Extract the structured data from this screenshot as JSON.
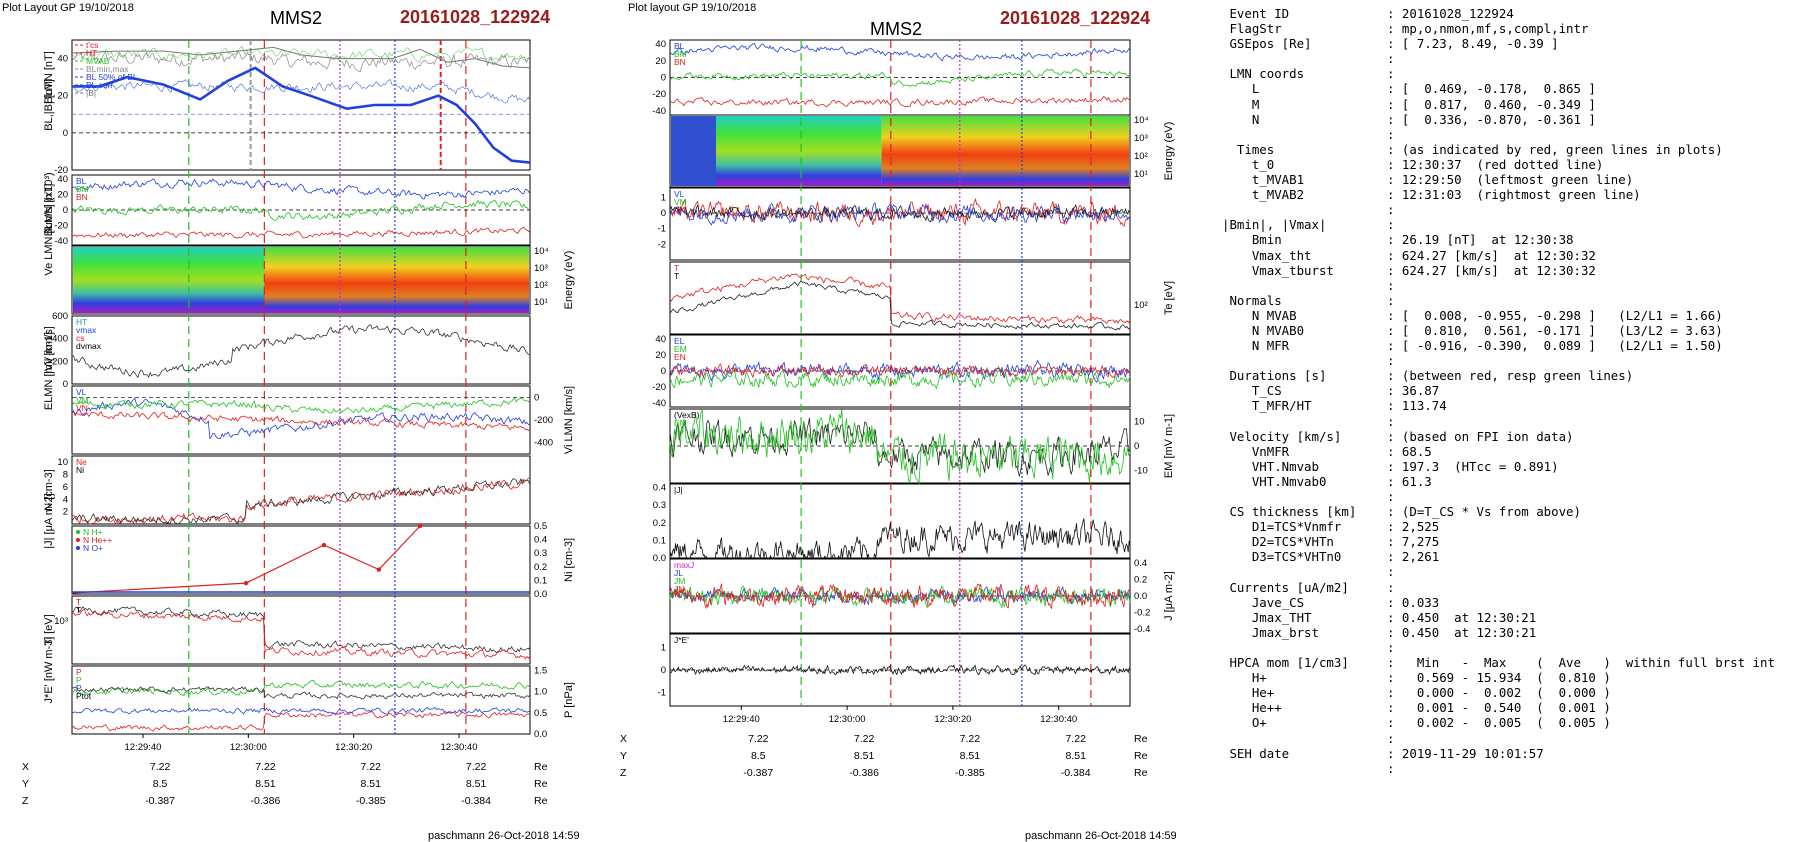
{
  "left": {
    "layout_label": "Plot Layout GP 19/10/2018",
    "spacecraft": "MMS2",
    "event_code": "20161028_122924",
    "footer": "paschmann 26-Oct-2018 14:59",
    "time_ticks": [
      "12:29:40",
      "12:30:00",
      "12:30:20",
      "12:30:40"
    ],
    "pos_rows": [
      {
        "label": "X",
        "values": [
          "7.22",
          "7.22",
          "7.22",
          "7.22"
        ],
        "unit": "Re"
      },
      {
        "label": "Y",
        "values": [
          "8.5",
          "8.51",
          "8.51",
          "8.51"
        ],
        "unit": "Re"
      },
      {
        "label": "Z",
        "values": [
          "-0.387",
          "-0.386",
          "-0.385",
          "-0.384"
        ],
        "unit": "Re"
      }
    ]
  },
  "right": {
    "layout_label": "Plot layout GP 19/10/2018",
    "spacecraft": "MMS2",
    "event_code": "20161028_122924",
    "footer": "paschmann 26-Oct-2018 14:59",
    "time_ticks": [
      "12:29:40",
      "12:30:00",
      "12:30:20",
      "12:30:40"
    ],
    "pos_rows": [
      {
        "label": "X",
        "values": [
          "7.22",
          "7.22",
          "7.22",
          "7.22"
        ],
        "unit": "Re"
      },
      {
        "label": "Y",
        "values": [
          "8.5",
          "8.51",
          "8.51",
          "8.51"
        ],
        "unit": "Re"
      },
      {
        "label": "Z",
        "values": [
          "-0.387",
          "-0.386",
          "-0.385",
          "-0.384"
        ],
        "unit": "Re"
      }
    ]
  },
  "chart_data": [
    {
      "type": "line",
      "panel": "left-1",
      "ylabel": "BL,|B| [nT]",
      "ylim": [
        -20,
        50
      ],
      "yticks": [
        "40",
        "20",
        "0",
        "-20"
      ],
      "legend": [
        "t'cs",
        "HT",
        "MVAB",
        "BLmin,max",
        "BL 50% of BL",
        "BL corr",
        "|B|"
      ],
      "series": [
        {
          "name": "BL",
          "x": [
            0,
            0.06,
            0.12,
            0.2,
            0.28,
            0.34,
            0.4,
            0.46,
            0.52,
            0.6,
            0.66,
            0.74,
            0.8,
            0.84,
            0.88,
            0.92,
            0.96,
            1.0
          ],
          "values": [
            25,
            25,
            30,
            26,
            18,
            28,
            35,
            25,
            20,
            13,
            15,
            15,
            20,
            15,
            5,
            -8,
            -15,
            -16
          ]
        },
        {
          "name": "|B|",
          "x": [
            0,
            0.1,
            0.2,
            0.28,
            0.36,
            0.44,
            0.5,
            0.58,
            0.64,
            0.7,
            0.76,
            0.82,
            0.88,
            0.94,
            1.0
          ],
          "values": [
            43,
            44,
            44,
            42,
            44,
            46,
            42,
            40,
            40,
            40,
            45,
            38,
            40,
            36,
            35
          ]
        }
      ]
    },
    {
      "type": "line",
      "panel": "left-2",
      "ylabel": "BLMN [nT]",
      "ylim": [
        -45,
        45
      ],
      "yticks": [
        "40",
        "20",
        "0",
        "-20",
        "-40"
      ],
      "legend": [
        "BL",
        "BM",
        "BN"
      ]
    },
    {
      "type": "heatmap",
      "panel": "left-3",
      "ylabel": "Energy (eV)",
      "yticks": [
        "10⁴",
        "10³",
        "10²",
        "10¹"
      ]
    },
    {
      "type": "line",
      "panel": "left-4",
      "ylabel": "|Vi| [km/s]",
      "ylim": [
        0,
        600
      ],
      "yticks": [
        "600",
        "400",
        "200",
        "0"
      ],
      "legend": [
        "HT",
        "vmax",
        "cs",
        "dvmax"
      ]
    },
    {
      "type": "line",
      "panel": "left-5",
      "ylabel": "Vi LMN [km/s]",
      "ylim": [
        -500,
        100
      ],
      "yticks": [
        "0",
        "-200",
        "-400"
      ],
      "legend": [
        "VL",
        "VM",
        "VN"
      ]
    },
    {
      "type": "line",
      "panel": "left-6",
      "ylabel": "N [cm-3]",
      "ylim": [
        0,
        11
      ],
      "yticks": [
        "10",
        "8",
        "6",
        "4",
        "2"
      ],
      "legend": [
        "Ne",
        "Ni"
      ]
    },
    {
      "type": "line",
      "panel": "left-7",
      "ylabel": "Ni [cm-3]",
      "ylim": [
        0,
        0.5
      ],
      "yticks": [
        "0.5",
        "0.4",
        "0.3",
        "0.2",
        "0.1",
        "0.0"
      ],
      "legend": [
        "N H+",
        "N He++",
        "N O+"
      ],
      "series": [
        {
          "name": "N He++",
          "x": [
            0.38,
            0.55,
            0.67,
            0.76
          ],
          "values": [
            0.08,
            0.36,
            0.18,
            0.5
          ]
        }
      ]
    },
    {
      "type": "line",
      "panel": "left-8",
      "ylabel": "Ti [eV]",
      "yticks": [
        "10³"
      ],
      "legend": [
        "T",
        "T"
      ]
    },
    {
      "type": "line",
      "panel": "left-9",
      "ylabel": "P [nPa]",
      "ylim": [
        0,
        1.6
      ],
      "yticks": [
        "1.5",
        "1.0",
        "0.5",
        "0.0"
      ],
      "legend": [
        "P",
        "P",
        "P",
        "Ptot"
      ]
    },
    {
      "type": "line",
      "panel": "right-1",
      "ylabel": "BLMN [nT]",
      "ylim": [
        -45,
        45
      ],
      "yticks": [
        "40",
        "20",
        "0",
        "-20",
        "-40"
      ],
      "legend": [
        "BL",
        "BM",
        "BN"
      ]
    },
    {
      "type": "heatmap",
      "panel": "right-2",
      "ylabel": "Energy (eV)",
      "yticks": [
        "10⁴",
        "10³",
        "10²",
        "10¹"
      ]
    },
    {
      "type": "line",
      "panel": "right-3",
      "ylabel": "Ve LMN [km/s] (x10³)",
      "ylim": [
        -3,
        1.6
      ],
      "yticks": [
        "1",
        "0",
        "-1",
        "-2"
      ],
      "legend": [
        "VL",
        "VM",
        "VN"
      ]
    },
    {
      "type": "line",
      "panel": "right-4",
      "ylabel": "Te [eV]",
      "yticks": [
        "10²"
      ],
      "legend": [
        "T",
        "T"
      ]
    },
    {
      "type": "line",
      "panel": "right-5",
      "ylabel": "ELMN [mV m-1]",
      "ylim": [
        -45,
        45
      ],
      "yticks": [
        "40",
        "20",
        "0",
        "-20",
        "-40"
      ],
      "legend": [
        "EL",
        "EM",
        "EN"
      ]
    },
    {
      "type": "line",
      "panel": "right-6",
      "ylabel": "EM [mV m-1]",
      "ylim": [
        -15,
        15
      ],
      "yticks": [
        "10",
        "0",
        "-10"
      ],
      "legend": [
        "(VexB)",
        "EM"
      ]
    },
    {
      "type": "line",
      "panel": "right-7",
      "ylabel": "|J| [μA m-2]",
      "ylim": [
        0,
        0.42
      ],
      "yticks": [
        "0.4",
        "0.3",
        "0.2",
        "0.1",
        "0.0"
      ],
      "legend": [
        "|J|"
      ]
    },
    {
      "type": "line",
      "panel": "right-8",
      "ylabel": "J [μA m-2]",
      "ylim": [
        -0.45,
        0.45
      ],
      "yticks": [
        "0.4",
        "0.2",
        "0.0",
        "-0.2",
        "-0.4"
      ],
      "legend": [
        "maxJ",
        "JL",
        "JM",
        "JN"
      ]
    },
    {
      "type": "line",
      "panel": "right-9",
      "ylabel": "J*E' [nW m-3]",
      "ylim": [
        -1.6,
        1.6
      ],
      "yticks": [
        "1",
        "0",
        "-1"
      ],
      "legend": [
        "J*E'"
      ]
    }
  ],
  "summary": [
    {
      "k": " Event ID",
      "v": ": 20161028_122924"
    },
    {
      "k": " FlagStr",
      "v": ": mp,o,nmon,mf,s,compl,intr"
    },
    {
      "k": " GSEpos [Re]",
      "v": ": [ 7.23, 8.49, -0.39 ]"
    },
    {
      "k": "",
      "v": ":"
    },
    {
      "k": " LMN coords",
      "v": ":"
    },
    {
      "k": "    L",
      "v": ": [  0.469, -0.178,  0.865 ]"
    },
    {
      "k": "    M",
      "v": ": [  0.817,  0.460, -0.349 ]"
    },
    {
      "k": "    N",
      "v": ": [  0.336, -0.870, -0.361 ]"
    },
    {
      "k": "",
      "v": ":"
    },
    {
      "k": "  Times",
      "v": ": (as indicated by red, green lines in plots)"
    },
    {
      "k": "    t_0",
      "v": ": 12:30:37  (red dotted line)"
    },
    {
      "k": "    t_MVAB1",
      "v": ": 12:29:50  (leftmost green line)"
    },
    {
      "k": "    t_MVAB2",
      "v": ": 12:31:03  (rightmost green line)"
    },
    {
      "k": "",
      "v": ":"
    },
    {
      "k": "|Bmin|, |Vmax|",
      "v": ":"
    },
    {
      "k": "    Bmin",
      "v": ": 26.19 [nT]  at 12:30:38"
    },
    {
      "k": "    Vmax_tht",
      "v": ": 624.27 [km/s]  at 12:30:32"
    },
    {
      "k": "    Vmax_tburst",
      "v": ": 624.27 [km/s]  at 12:30:32"
    },
    {
      "k": "",
      "v": ":"
    },
    {
      "k": " Normals",
      "v": ":"
    },
    {
      "k": "    N MVAB",
      "v": ": [  0.008, -0.955, -0.298 ]   (L2/L1 = 1.66)"
    },
    {
      "k": "    N MVAB0",
      "v": ": [  0.810,  0.561, -0.171 ]   (L3/L2 = 3.63)"
    },
    {
      "k": "    N MFR",
      "v": ": [ -0.916, -0.390,  0.089 ]   (L2/L1 = 1.50)"
    },
    {
      "k": "",
      "v": ":"
    },
    {
      "k": " Durations [s]",
      "v": ": (between red, resp green lines)"
    },
    {
      "k": "    T_CS",
      "v": ": 36.87"
    },
    {
      "k": "    T_MFR/HT",
      "v": ": 113.74"
    },
    {
      "k": "",
      "v": ":"
    },
    {
      "k": " Velocity [km/s]",
      "v": ": (based on FPI ion data)"
    },
    {
      "k": "    VnMFR",
      "v": ": 68.5"
    },
    {
      "k": "    VHT.Nmvab",
      "v": ": 197.3  (HTcc = 0.891)"
    },
    {
      "k": "    VHT.Nmvab0",
      "v": ": 61.3"
    },
    {
      "k": "",
      "v": ":"
    },
    {
      "k": " CS thickness [km]",
      "v": ": (D=T_CS * Vs from above)"
    },
    {
      "k": "    D1=TCS*Vnmfr",
      "v": ": 2,525"
    },
    {
      "k": "    D2=TCS*VHTn",
      "v": ": 7,275"
    },
    {
      "k": "    D3=TCS*VHTn0",
      "v": ": 2,261"
    },
    {
      "k": "",
      "v": ":"
    },
    {
      "k": " Currents [uA/m2]",
      "v": ":"
    },
    {
      "k": "    Jave_CS",
      "v": ": 0.033"
    },
    {
      "k": "    Jmax_THT",
      "v": ": 0.450  at 12:30:21"
    },
    {
      "k": "    Jmax_brst",
      "v": ": 0.450  at 12:30:21"
    },
    {
      "k": "",
      "v": ":"
    },
    {
      "k": " HPCA mom [1/cm3]",
      "v": ":   Min   -  Max    (  Ave   )  within full brst int"
    },
    {
      "k": "    H+",
      "v": ":   0.569 - 15.934  (  0.810 )"
    },
    {
      "k": "    He+",
      "v": ":   0.000 -  0.002  (  0.000 )"
    },
    {
      "k": "    He++",
      "v": ":   0.001 -  0.540  (  0.001 )"
    },
    {
      "k": "    O+",
      "v": ":   0.002 -  0.005  (  0.005 )"
    },
    {
      "k": "",
      "v": ":"
    },
    {
      "k": " SEH date",
      "v": ": 2019-11-29 10:01:57"
    },
    {
      "k": "",
      "v": ":"
    }
  ],
  "colors": {
    "red": "#e02020",
    "green": "#22c022",
    "blue": "#2040e0",
    "magenta": "#d020d0",
    "black": "#000000",
    "title_red": "#9b1b1b"
  }
}
